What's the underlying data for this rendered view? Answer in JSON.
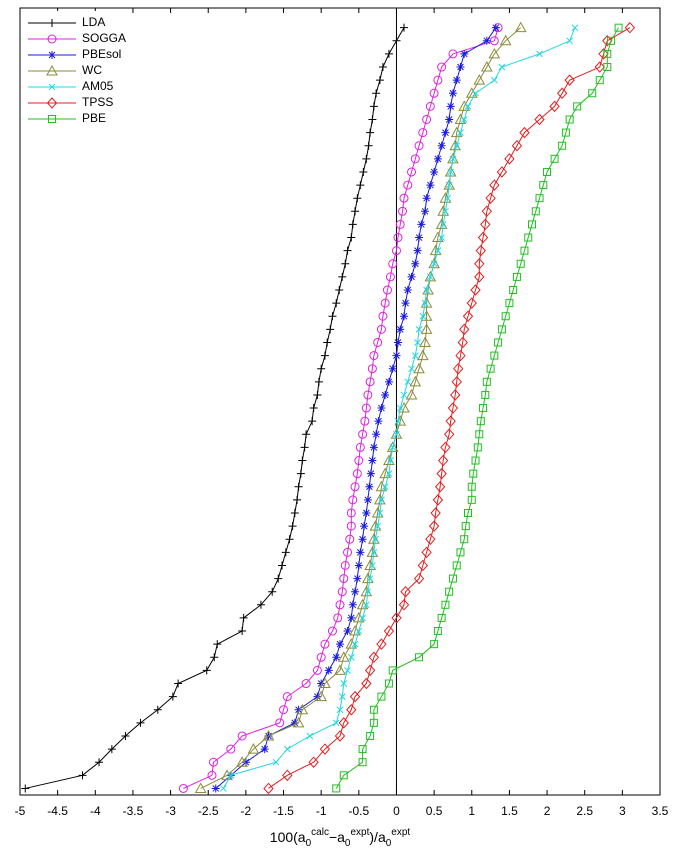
{
  "chart_data": {
    "type": "line",
    "orientation": "horizontal",
    "x_label": [
      "100(a",
      "0",
      "calc",
      "−a",
      "0",
      "expt",
      ")/a",
      "0",
      "expt"
    ],
    "xlim": [
      -5,
      3.5
    ],
    "xticks": [
      -5,
      -4.5,
      -4,
      -3.5,
      -3,
      -2.5,
      -2,
      -1.5,
      -1,
      -0.5,
      0,
      0.5,
      1,
      1.5,
      2,
      2.5,
      3,
      3.5
    ],
    "ylim": [
      0.5,
      60.5
    ],
    "zero_line": true,
    "legend": "upper-left",
    "series": [
      {
        "name": "LDA",
        "color": "#000000",
        "marker": "plus",
        "values": [
          -4.93,
          -4.17,
          -3.95,
          -3.78,
          -3.6,
          -3.4,
          -3.17,
          -2.97,
          -2.9,
          -2.52,
          -2.42,
          -2.38,
          -2.05,
          -2.03,
          -1.8,
          -1.65,
          -1.57,
          -1.52,
          -1.47,
          -1.42,
          -1.38,
          -1.35,
          -1.32,
          -1.3,
          -1.27,
          -1.25,
          -1.22,
          -1.2,
          -1.12,
          -1.1,
          -1.05,
          -1.03,
          -1.0,
          -0.95,
          -0.92,
          -0.88,
          -0.85,
          -0.8,
          -0.76,
          -0.72,
          -0.68,
          -0.65,
          -0.6,
          -0.58,
          -0.55,
          -0.52,
          -0.48,
          -0.44,
          -0.4,
          -0.37,
          -0.35,
          -0.32,
          -0.3,
          -0.27,
          -0.22,
          -0.18,
          -0.1,
          0.0,
          0.1
        ]
      },
      {
        "name": "SOGGA",
        "color": "#e020e0",
        "marker": "circle",
        "values": [
          -2.83,
          -2.45,
          -2.43,
          -2.2,
          -2.05,
          -1.55,
          -1.5,
          -1.45,
          -1.2,
          -1.05,
          -1.0,
          -0.95,
          -0.85,
          -0.78,
          -0.75,
          -0.72,
          -0.7,
          -0.68,
          -0.65,
          -0.62,
          -0.6,
          -0.6,
          -0.58,
          -0.55,
          -0.52,
          -0.5,
          -0.48,
          -0.45,
          -0.42,
          -0.4,
          -0.38,
          -0.35,
          -0.32,
          -0.3,
          -0.25,
          -0.2,
          -0.18,
          -0.15,
          -0.12,
          -0.08,
          -0.05,
          0.0,
          0.02,
          0.05,
          0.08,
          0.1,
          0.15,
          0.2,
          0.25,
          0.3,
          0.35,
          0.4,
          0.45,
          0.5,
          0.55,
          0.6,
          0.75,
          1.3,
          1.35
        ]
      },
      {
        "name": "PBEsol",
        "color": "#1a1ae0",
        "marker": "star",
        "values": [
          -2.4,
          -2.2,
          -2.0,
          -1.75,
          -1.7,
          -1.35,
          -1.3,
          -1.05,
          -1.0,
          -0.9,
          -0.8,
          -0.75,
          -0.65,
          -0.6,
          -0.58,
          -0.55,
          -0.52,
          -0.5,
          -0.48,
          -0.45,
          -0.43,
          -0.4,
          -0.38,
          -0.36,
          -0.34,
          -0.32,
          -0.3,
          -0.27,
          -0.24,
          -0.2,
          -0.15,
          -0.1,
          -0.05,
          0.0,
          0.02,
          0.05,
          0.1,
          0.12,
          0.15,
          0.2,
          0.25,
          0.28,
          0.3,
          0.33,
          0.38,
          0.4,
          0.45,
          0.5,
          0.55,
          0.6,
          0.65,
          0.7,
          0.72,
          0.75,
          0.8,
          0.85,
          0.9,
          1.2,
          1.32
        ]
      },
      {
        "name": "WC",
        "color": "#8b8b3a",
        "marker": "triangle",
        "values": [
          -2.6,
          -2.25,
          -2.05,
          -1.9,
          -1.7,
          -1.3,
          -1.25,
          -1.0,
          -0.95,
          -0.75,
          -0.7,
          -0.6,
          -0.55,
          -0.5,
          -0.45,
          -0.4,
          -0.38,
          -0.35,
          -0.32,
          -0.3,
          -0.28,
          -0.25,
          -0.22,
          -0.2,
          -0.15,
          -0.1,
          -0.05,
          0.0,
          0.05,
          0.1,
          0.2,
          0.25,
          0.3,
          0.35,
          0.38,
          0.4,
          0.4,
          0.4,
          0.42,
          0.45,
          0.5,
          0.52,
          0.55,
          0.6,
          0.62,
          0.65,
          0.7,
          0.72,
          0.75,
          0.78,
          0.8,
          0.85,
          0.9,
          1.0,
          1.1,
          1.2,
          1.3,
          1.45,
          1.65
        ]
      },
      {
        "name": "AM05",
        "color": "#20d8e0",
        "marker": "x",
        "values": [
          -2.3,
          -2.2,
          -1.6,
          -1.45,
          -1.15,
          -0.8,
          -0.75,
          -0.72,
          -0.7,
          -0.65,
          -0.6,
          -0.55,
          -0.5,
          -0.45,
          -0.4,
          -0.38,
          -0.35,
          -0.32,
          -0.3,
          -0.28,
          -0.25,
          -0.22,
          -0.2,
          -0.15,
          -0.1,
          -0.08,
          -0.05,
          0.0,
          0.02,
          0.05,
          0.1,
          0.15,
          0.2,
          0.25,
          0.28,
          0.3,
          0.35,
          0.38,
          0.4,
          0.45,
          0.5,
          0.55,
          0.6,
          0.62,
          0.65,
          0.68,
          0.7,
          0.72,
          0.75,
          0.8,
          0.85,
          0.9,
          0.95,
          1.05,
          1.3,
          1.4,
          1.9,
          2.3,
          2.37
        ]
      },
      {
        "name": "TPSS",
        "color": "#e02020",
        "marker": "diamond",
        "values": [
          -1.7,
          -1.45,
          -1.1,
          -0.95,
          -0.75,
          -0.7,
          -0.6,
          -0.55,
          -0.4,
          -0.35,
          -0.3,
          -0.2,
          -0.1,
          0.0,
          0.1,
          0.12,
          0.3,
          0.35,
          0.4,
          0.45,
          0.5,
          0.52,
          0.55,
          0.58,
          0.6,
          0.62,
          0.65,
          0.7,
          0.72,
          0.75,
          0.78,
          0.8,
          0.82,
          0.85,
          0.88,
          0.9,
          0.95,
          1.0,
          1.05,
          1.1,
          1.1,
          1.12,
          1.15,
          1.18,
          1.2,
          1.25,
          1.3,
          1.4,
          1.5,
          1.6,
          1.7,
          1.9,
          2.1,
          2.2,
          2.3,
          2.7,
          2.75,
          2.8,
          3.1
        ]
      },
      {
        "name": "PBE",
        "color": "#20c020",
        "marker": "square",
        "values": [
          -0.8,
          -0.7,
          -0.45,
          -0.45,
          -0.35,
          -0.3,
          -0.3,
          -0.2,
          -0.1,
          -0.05,
          0.3,
          0.5,
          0.55,
          0.6,
          0.65,
          0.7,
          0.75,
          0.8,
          0.85,
          0.9,
          0.92,
          0.95,
          1.0,
          1.0,
          1.02,
          1.05,
          1.08,
          1.1,
          1.12,
          1.15,
          1.18,
          1.2,
          1.25,
          1.3,
          1.35,
          1.4,
          1.45,
          1.5,
          1.55,
          1.6,
          1.65,
          1.7,
          1.75,
          1.8,
          1.85,
          1.9,
          1.95,
          2.0,
          2.1,
          2.2,
          2.25,
          2.3,
          2.4,
          2.6,
          2.7,
          2.8,
          2.8,
          2.85,
          2.95
        ]
      }
    ]
  }
}
